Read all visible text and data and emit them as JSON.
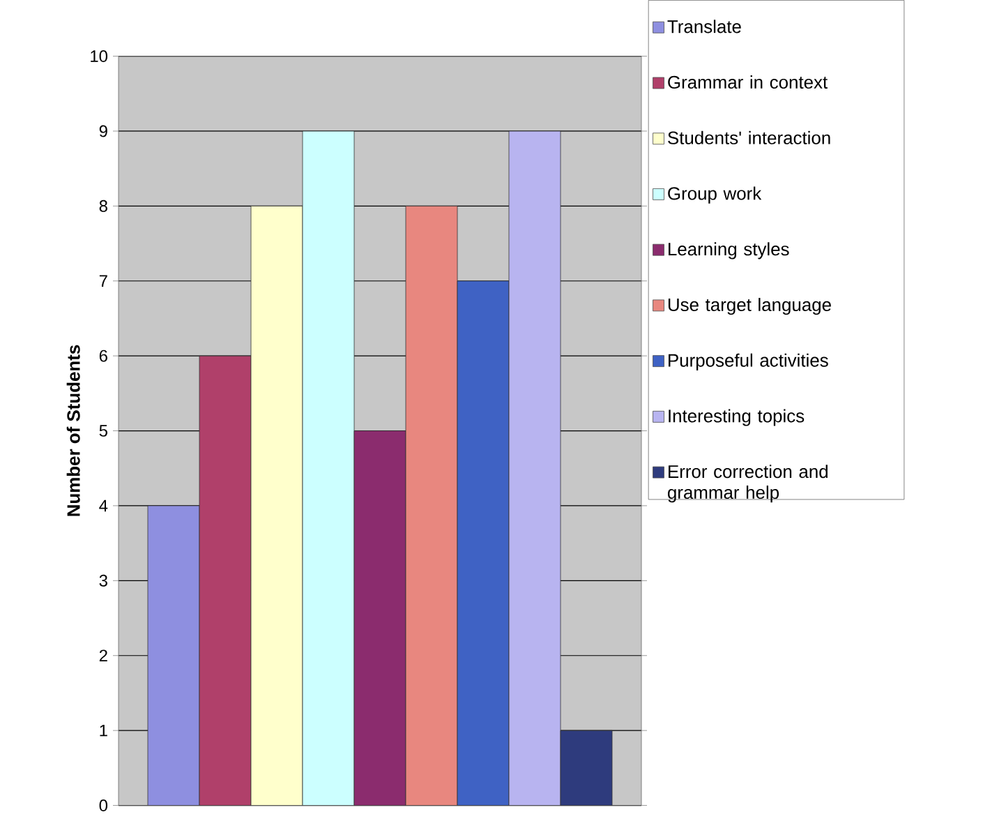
{
  "chart_data": {
    "type": "bar",
    "ylabel": "Number of Students",
    "categories": [
      null
    ],
    "series": [
      {
        "name": "Translate",
        "color": "#8e8fe0",
        "values": [
          4
        ]
      },
      {
        "name": "Grammar in context",
        "color": "#b0406a",
        "values": [
          6
        ]
      },
      {
        "name": "Students' interaction",
        "color": "#ffffcc",
        "values": [
          8
        ]
      },
      {
        "name": "Group work",
        "color": "#ccffff",
        "values": [
          9
        ]
      },
      {
        "name": "Learning styles",
        "color": "#8b2c6e",
        "values": [
          5
        ]
      },
      {
        "name": "Use target language",
        "color": "#e8877f",
        "values": [
          8
        ]
      },
      {
        "name": "Purposeful activities",
        "color": "#3f62c4",
        "values": [
          7
        ]
      },
      {
        "name": "Interesting topics",
        "color": "#b8b4f0",
        "values": [
          9
        ]
      },
      {
        "name": "Error correction and grammar help",
        "color": "#2e3b7d",
        "values": [
          1
        ]
      }
    ],
    "ylim": [
      0,
      10
    ],
    "yticks": [
      0,
      1,
      2,
      3,
      4,
      5,
      6,
      7,
      8,
      9,
      10
    ],
    "grid": "y",
    "legend": "right"
  }
}
